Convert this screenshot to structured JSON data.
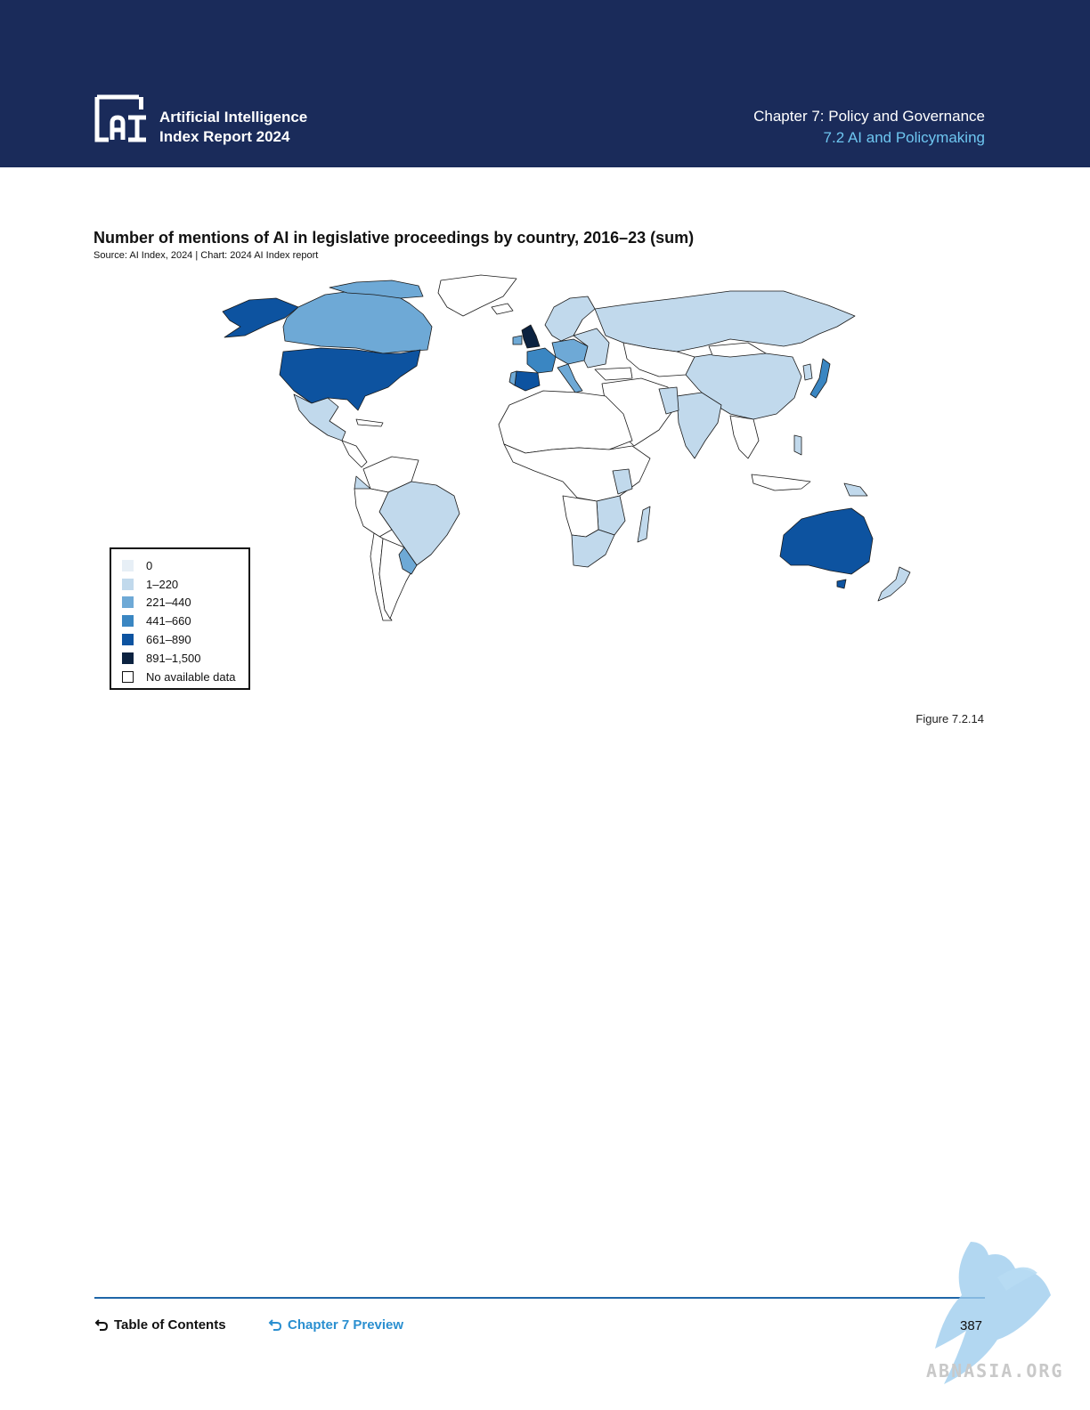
{
  "header": {
    "report_title_line1": "Artificial Intelligence",
    "report_title_line2": "Index Report 2024",
    "chapter_title": "Chapter 7: Policy and Governance",
    "section_title": "7.2 AI and Policymaking"
  },
  "chart": {
    "title": "Number of mentions of AI in legislative proceedings by country, 2016–23 (sum)",
    "source": "Source: AI Index, 2024 | Chart: 2024 AI Index report"
  },
  "chart_data": {
    "type": "choropleth",
    "title": "Number of mentions of AI in legislative proceedings by country, 2016–23 (sum)",
    "legend": [
      {
        "label": "0",
        "color": "#e7eff6"
      },
      {
        "label": "1–220",
        "color": "#c1d9ec"
      },
      {
        "label": "221–440",
        "color": "#6ea9d6"
      },
      {
        "label": "441–660",
        "color": "#3a86c2"
      },
      {
        "label": "661–890",
        "color": "#0d53a0"
      },
      {
        "label": "891–1,500",
        "color": "#0b2240"
      },
      {
        "label": "No available data",
        "color": "#ffffff"
      }
    ],
    "legend_placement": "bottom-left",
    "countries": [
      {
        "name": "United Kingdom",
        "bin": "891–1,500"
      },
      {
        "name": "United States",
        "bin": "661–890"
      },
      {
        "name": "Spain",
        "bin": "661–890"
      },
      {
        "name": "Australia",
        "bin": "661–890"
      },
      {
        "name": "Alaska (United States)",
        "bin": "661–890"
      },
      {
        "name": "Japan",
        "bin": "441–660"
      },
      {
        "name": "France",
        "bin": "441–660"
      },
      {
        "name": "Canada",
        "bin": "221–440"
      },
      {
        "name": "Brazil",
        "bin": "1–220"
      },
      {
        "name": "Russia",
        "bin": "1–220"
      },
      {
        "name": "China",
        "bin": "1–220"
      },
      {
        "name": "India",
        "bin": "1–220"
      },
      {
        "name": "Mexico",
        "bin": "1–220"
      },
      {
        "name": "South Africa",
        "bin": "1–220"
      },
      {
        "name": "New Zealand",
        "bin": "1–220"
      }
    ]
  },
  "figure_label": "Figure 7.2.14",
  "footer": {
    "toc_label": "Table of Contents",
    "chapter_preview_label": "Chapter 7 Preview",
    "page_number": "387"
  },
  "watermark": {
    "text": "ABNASIA.ORG"
  }
}
